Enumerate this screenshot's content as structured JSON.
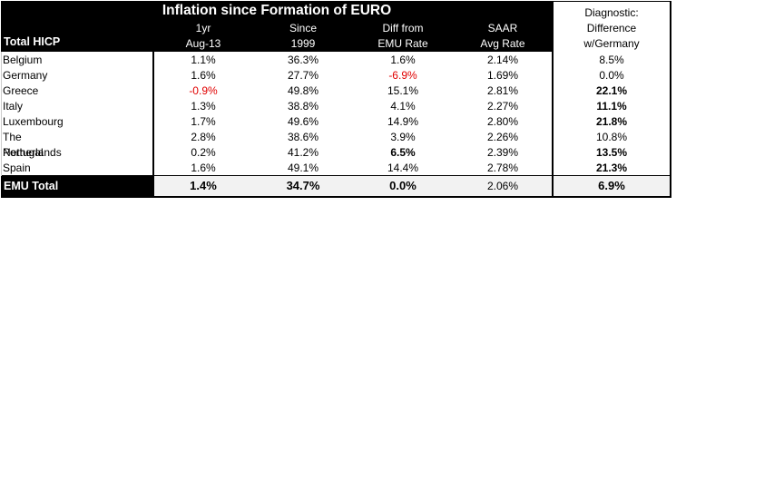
{
  "title": "Inflation since Formation of EURO",
  "row_header": "Total HICP",
  "columns": [
    {
      "line1": "1yr",
      "line2": "Aug-13"
    },
    {
      "line1": "Since",
      "line2": "1999"
    },
    {
      "line1": "Diff from",
      "line2": "EMU Rate"
    },
    {
      "line1": "SAAR",
      "line2": "Avg Rate"
    }
  ],
  "diagnostic": {
    "line1": "Diagnostic:",
    "line2": "Difference",
    "line3": "w/Germany"
  },
  "rows": [
    {
      "name": "Belgium",
      "v1": "1.1%",
      "v2": "36.3%",
      "v3": "1.6%",
      "v4": "2.14%",
      "d": "8.5%"
    },
    {
      "name": "Germany",
      "v1": "1.6%",
      "v2": "27.7%",
      "v3": "-6.9%",
      "v4": "1.69%",
      "d": "0.0%"
    },
    {
      "name": "Greece",
      "v1": "-0.9%",
      "v2": "49.8%",
      "v3": "15.1%",
      "v4": "2.81%",
      "d": "22.1%"
    },
    {
      "name": "Italy",
      "v1": "1.3%",
      "v2": "38.8%",
      "v3": "4.1%",
      "v4": "2.27%",
      "d": "11.1%"
    },
    {
      "name": "Luxembourg",
      "v1": "1.7%",
      "v2": "49.6%",
      "v3": "14.9%",
      "v4": "2.80%",
      "d": "21.8%"
    },
    {
      "name": "The Netherlands",
      "v1": "2.8%",
      "v2": "38.6%",
      "v3": "3.9%",
      "v4": "2.26%",
      "d": "10.8%"
    },
    {
      "name": "Portugal",
      "v1": "0.2%",
      "v2": "41.2%",
      "v3": "6.5%",
      "v4": "2.39%",
      "d": "13.5%"
    },
    {
      "name": "Spain",
      "v1": "1.6%",
      "v2": "49.1%",
      "v3": "14.4%",
      "v4": "2.78%",
      "d": "21.3%"
    }
  ],
  "total": {
    "name": "EMU Total",
    "v1": "1.4%",
    "v2": "34.7%",
    "v3": "0.0%",
    "v4": "2.06%",
    "d": "6.9%"
  },
  "colors": {
    "negative": "#e00000",
    "header_bg": "#000000",
    "total_bg": "#f2f2f2"
  }
}
